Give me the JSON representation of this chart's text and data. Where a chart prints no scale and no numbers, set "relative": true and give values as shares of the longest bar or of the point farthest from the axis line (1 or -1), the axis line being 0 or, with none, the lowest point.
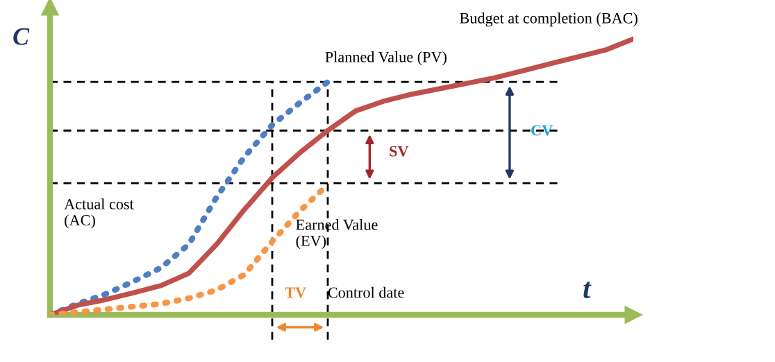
{
  "chart_data": {
    "type": "line",
    "relative": true,
    "xlabel": "t",
    "ylabel": "C",
    "categories": [
      null,
      null,
      null,
      null,
      null,
      null,
      null,
      null,
      null,
      null,
      null,
      null,
      null,
      null,
      null,
      null,
      null,
      null,
      null,
      null,
      null,
      null
    ],
    "series": [
      {
        "color": "#4f7fc0",
        "line_style": "dotted",
        "values": [
          0,
          0.04,
          0.075,
          0.121,
          0.171,
          0.256,
          0.427,
          0.573,
          0.688,
          0.769,
          0.844,
          null,
          null,
          null,
          null,
          null,
          null,
          null,
          null,
          null,
          null,
          null
        ]
      },
      {
        "color": "#c0504d",
        "line_style": "solid",
        "values": [
          0,
          0.035,
          0.055,
          0.08,
          0.106,
          0.151,
          0.256,
          0.382,
          0.497,
          0.588,
          0.668,
          0.739,
          0.774,
          0.799,
          0.819,
          0.839,
          0.859,
          0.884,
          0.91,
          0.935,
          0.96,
          1.0
        ]
      },
      {
        "color": "#f79646",
        "line_style": "dotted",
        "values": [
          0,
          0.01,
          0.02,
          0.03,
          0.04,
          0.06,
          0.09,
          0.146,
          0.266,
          0.377,
          0.472,
          null,
          null,
          null,
          null,
          null,
          null,
          null,
          null,
          null,
          null,
          null
        ]
      }
    ],
    "ref_lines": [
      {
        "axis": "y",
        "value": 0.844,
        "color": "#000000",
        "line_style": "dashed"
      },
      {
        "axis": "y",
        "value": 0.668,
        "color": "#000000",
        "line_style": "dashed"
      },
      {
        "axis": "y",
        "value": 0.477,
        "color": "#000000",
        "line_style": "dashed"
      }
    ],
    "annotations": [
      "Planned Value (PV)",
      "Budget at completion (BAC)",
      "Actual cost\n(AC)",
      "Earned Value\n(EV)",
      "SV",
      "CV",
      "TV",
      "Control date"
    ]
  }
}
